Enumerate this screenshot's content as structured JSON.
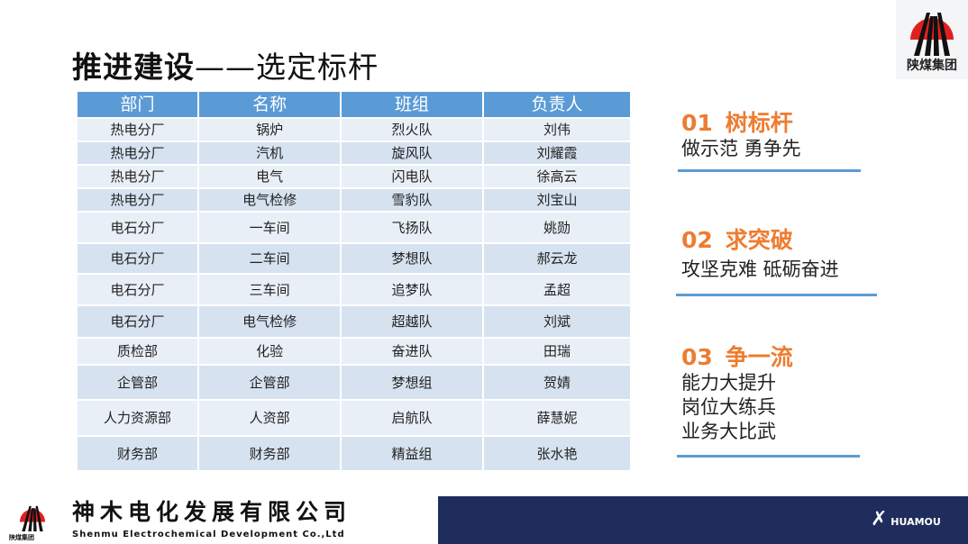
{
  "title": {
    "main": "推进建设",
    "dash": "——",
    "sub": "选定标杆"
  },
  "logo": {
    "text": "陕煤集团"
  },
  "table": {
    "headers": [
      "部门",
      "名称",
      "班组",
      "负责人"
    ],
    "rows": [
      [
        "热电分厂",
        "锅炉",
        "烈火队",
        "刘伟"
      ],
      [
        "热电分厂",
        "汽机",
        "旋风队",
        "刘耀霞"
      ],
      [
        "热电分厂",
        "电气",
        "闪电队",
        "徐高云"
      ],
      [
        "热电分厂",
        "电气检修",
        "雪豹队",
        "刘宝山"
      ],
      [
        "电石分厂",
        "一车间",
        "飞扬队",
        "姚勋"
      ],
      [
        "电石分厂",
        "二车间",
        "梦想队",
        "郝云龙"
      ],
      [
        "电石分厂",
        "三车间",
        "追梦队",
        "孟超"
      ],
      [
        "电石分厂",
        "电气检修",
        "超越队",
        "刘斌"
      ],
      [
        "质检部",
        "化验",
        "奋进队",
        "田瑞"
      ],
      [
        "企管部",
        "企管部",
        "梦想组",
        "贺婧"
      ],
      [
        "人力资源部",
        "人资部",
        "启航队",
        "薛慧妮"
      ],
      [
        "财务部",
        "财务部",
        "精益组",
        "张水艳"
      ]
    ]
  },
  "sections": [
    {
      "num": "01",
      "title": "树标杆",
      "lines": [
        "做示范  勇争先"
      ]
    },
    {
      "num": "02",
      "title": "求突破",
      "lines": [
        "攻坚克难  砥砺奋进"
      ]
    },
    {
      "num": "03",
      "title": "争一流",
      "lines": [
        "能力大提升",
        "岗位大练兵",
        "业务大比武"
      ]
    }
  ],
  "footer": {
    "company_cn": "神木电化发展有限公司",
    "company_en": "Shenmu Electrochemical Development Co.,Ltd",
    "group": "陕煤集团",
    "brand": "HUAMOU"
  },
  "colors": {
    "accent": "#ed7d31",
    "header": "#5b9bd5",
    "footer": "#1f2d5c"
  }
}
